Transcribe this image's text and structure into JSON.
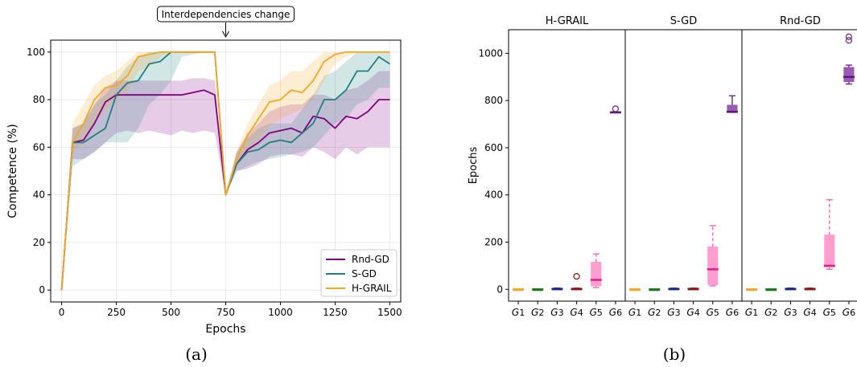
{
  "captions": {
    "a": "(a)",
    "b": "(b)"
  },
  "chart_data": [
    {
      "type": "line",
      "xlabel": "Epochs",
      "ylabel": "Competence (%)",
      "xlim": [
        -50,
        1550
      ],
      "ylim": [
        -5,
        105
      ],
      "xticks": [
        0,
        250,
        500,
        750,
        1000,
        1250,
        1500
      ],
      "yticks": [
        0,
        20,
        40,
        60,
        80,
        100
      ],
      "grid": true,
      "legend_position": "bottom-right",
      "annotation": {
        "text": "Interdependencies change",
        "x": 750
      },
      "x": [
        0,
        50,
        100,
        150,
        200,
        250,
        300,
        350,
        400,
        450,
        500,
        550,
        600,
        650,
        700,
        750,
        800,
        850,
        900,
        950,
        1000,
        1050,
        1100,
        1150,
        1200,
        1250,
        1300,
        1350,
        1400,
        1450,
        1500
      ],
      "series": [
        {
          "name": "Rnd-GD",
          "color": "#800080",
          "values": [
            0,
            62,
            63,
            70,
            79,
            82,
            82,
            82,
            82,
            82,
            82,
            82,
            83,
            84,
            82,
            40,
            53,
            59,
            62,
            66,
            67,
            68,
            66,
            73,
            72,
            68,
            73,
            72,
            75,
            80,
            80
          ],
          "lower": [
            0,
            55,
            55,
            58,
            62,
            66,
            67,
            66,
            67,
            66,
            65,
            67,
            66,
            67,
            66,
            40,
            50,
            51,
            53,
            56,
            57,
            57,
            56,
            60,
            58,
            55,
            60,
            57,
            60,
            60,
            60
          ],
          "upper": [
            0,
            68,
            70,
            78,
            85,
            88,
            88,
            88,
            88,
            88,
            88,
            88,
            89,
            89,
            88,
            40,
            58,
            66,
            70,
            75,
            77,
            78,
            78,
            82,
            82,
            80,
            84,
            85,
            88,
            92,
            92
          ]
        },
        {
          "name": "S-GD",
          "color": "#1f8080",
          "values": [
            0,
            62,
            62,
            65,
            68,
            82,
            87,
            88,
            95,
            96,
            100,
            100,
            100,
            100,
            100,
            40,
            53,
            58,
            59,
            62,
            63,
            62,
            66,
            70,
            80,
            80,
            84,
            92,
            92,
            98,
            95
          ],
          "lower": [
            0,
            52,
            55,
            58,
            62,
            62,
            62,
            68,
            78,
            82,
            88,
            98,
            99,
            100,
            100,
            40,
            50,
            52,
            54,
            55,
            56,
            57,
            58,
            60,
            65,
            70,
            72,
            78,
            80,
            85,
            85
          ],
          "upper": [
            0,
            68,
            70,
            78,
            82,
            88,
            94,
            98,
            100,
            100,
            100,
            100,
            100,
            100,
            100,
            40,
            58,
            64,
            68,
            70,
            70,
            70,
            76,
            82,
            90,
            92,
            96,
            100,
            100,
            100,
            100
          ]
        },
        {
          "name": "H-GRAIL",
          "color": "#f5a623",
          "values": [
            0,
            62,
            70,
            80,
            85,
            86,
            90,
            98,
            99,
            100,
            100,
            100,
            100,
            100,
            100,
            40,
            55,
            65,
            72,
            79,
            80,
            84,
            83,
            88,
            96,
            99,
            100,
            100,
            100,
            100,
            100
          ],
          "lower": [
            0,
            58,
            62,
            70,
            76,
            80,
            84,
            92,
            94,
            98,
            100,
            100,
            100,
            100,
            100,
            40,
            52,
            58,
            63,
            69,
            72,
            74,
            76,
            80,
            88,
            95,
            98,
            100,
            100,
            100,
            100
          ],
          "upper": [
            0,
            70,
            78,
            86,
            90,
            92,
            96,
            100,
            100,
            100,
            100,
            100,
            100,
            100,
            100,
            40,
            58,
            70,
            78,
            86,
            88,
            92,
            92,
            96,
            100,
            100,
            100,
            100,
            100,
            100,
            100
          ]
        }
      ]
    },
    {
      "type": "box",
      "ylabel": "Epochs",
      "ylim": [
        -50,
        1100
      ],
      "yticks": [
        0,
        200,
        400,
        600,
        800,
        1000
      ],
      "categories": [
        "G1",
        "G2",
        "G3",
        "G4",
        "G5",
        "G6"
      ],
      "category_colors": [
        "#f5a623",
        "#1a7a1a",
        "#1a2a8a",
        "#8b1a1a",
        "#ff6eb4",
        "#7b2d8b"
      ],
      "panels": [
        {
          "title": "H-GRAIL",
          "boxes": [
            {
              "min": 0,
              "q1": 0,
              "median": 0,
              "q3": 0,
              "max": 0,
              "outliers": []
            },
            {
              "min": 0,
              "q1": 0,
              "median": 0,
              "q3": 0,
              "max": 0,
              "outliers": []
            },
            {
              "min": 0,
              "q1": 0,
              "median": 2,
              "q3": 3,
              "max": 5,
              "outliers": []
            },
            {
              "min": 0,
              "q1": 0,
              "median": 2,
              "q3": 3,
              "max": 5,
              "outliers": [
                55
              ]
            },
            {
              "min": 8,
              "q1": 15,
              "median": 40,
              "q3": 115,
              "max": 150,
              "outliers": []
            },
            {
              "min": 750,
              "q1": 750,
              "median": 750,
              "q3": 752,
              "max": 752,
              "outliers": [
                765
              ]
            }
          ]
        },
        {
          "title": "S-GD",
          "boxes": [
            {
              "min": 0,
              "q1": 0,
              "median": 0,
              "q3": 0,
              "max": 0,
              "outliers": []
            },
            {
              "min": 0,
              "q1": 0,
              "median": 0,
              "q3": 0,
              "max": 0,
              "outliers": []
            },
            {
              "min": 0,
              "q1": 0,
              "median": 2,
              "q3": 3,
              "max": 5,
              "outliers": []
            },
            {
              "min": 0,
              "q1": 0,
              "median": 2,
              "q3": 3,
              "max": 5,
              "outliers": []
            },
            {
              "min": 15,
              "q1": 20,
              "median": 85,
              "q3": 180,
              "max": 270,
              "outliers": []
            },
            {
              "min": 750,
              "q1": 750,
              "median": 752,
              "q3": 780,
              "max": 820,
              "outliers": []
            }
          ]
        },
        {
          "title": "Rnd-GD",
          "boxes": [
            {
              "min": 0,
              "q1": 0,
              "median": 0,
              "q3": 0,
              "max": 0,
              "outliers": []
            },
            {
              "min": 0,
              "q1": 0,
              "median": 0,
              "q3": 0,
              "max": 0,
              "outliers": []
            },
            {
              "min": 0,
              "q1": 0,
              "median": 2,
              "q3": 3,
              "max": 5,
              "outliers": []
            },
            {
              "min": 0,
              "q1": 0,
              "median": 2,
              "q3": 3,
              "max": 5,
              "outliers": []
            },
            {
              "min": 85,
              "q1": 95,
              "median": 100,
              "q3": 230,
              "max": 380,
              "outliers": []
            },
            {
              "min": 870,
              "q1": 880,
              "median": 900,
              "q3": 940,
              "max": 950,
              "outliers": [
                1055,
                1070
              ]
            }
          ]
        }
      ]
    }
  ]
}
